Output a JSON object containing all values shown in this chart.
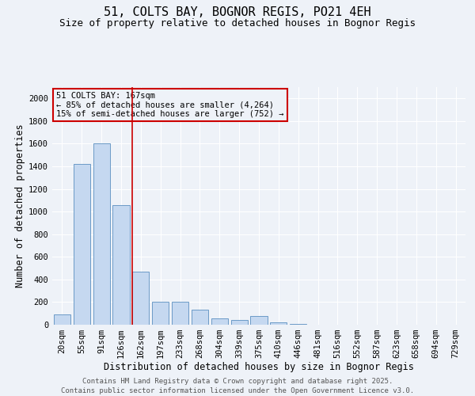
{
  "title": "51, COLTS BAY, BOGNOR REGIS, PO21 4EH",
  "subtitle": "Size of property relative to detached houses in Bognor Regis",
  "xlabel": "Distribution of detached houses by size in Bognor Regis",
  "ylabel": "Number of detached properties",
  "categories": [
    "20sqm",
    "55sqm",
    "91sqm",
    "126sqm",
    "162sqm",
    "197sqm",
    "233sqm",
    "268sqm",
    "304sqm",
    "339sqm",
    "375sqm",
    "410sqm",
    "446sqm",
    "481sqm",
    "516sqm",
    "552sqm",
    "587sqm",
    "623sqm",
    "658sqm",
    "694sqm",
    "729sqm"
  ],
  "values": [
    90,
    1420,
    1600,
    1060,
    470,
    205,
    205,
    130,
    55,
    40,
    80,
    20,
    5,
    2,
    1,
    1,
    0,
    0,
    0,
    0,
    0
  ],
  "bar_color": "#c5d8f0",
  "bar_edge_color": "#5a8fc0",
  "vline_x": 4.0,
  "vline_color": "#cc0000",
  "ylim": [
    0,
    2100
  ],
  "yticks": [
    0,
    200,
    400,
    600,
    800,
    1000,
    1200,
    1400,
    1600,
    1800,
    2000
  ],
  "annotation_title": "51 COLTS BAY: 167sqm",
  "annotation_line1": "← 85% of detached houses are smaller (4,264)",
  "annotation_line2": "15% of semi-detached houses are larger (752) →",
  "annotation_box_color": "#cc0000",
  "bg_color": "#eef2f8",
  "grid_color": "#ffffff",
  "footer_line1": "Contains HM Land Registry data © Crown copyright and database right 2025.",
  "footer_line2": "Contains public sector information licensed under the Open Government Licence v3.0.",
  "title_fontsize": 11,
  "subtitle_fontsize": 9,
  "axis_label_fontsize": 8.5,
  "tick_fontsize": 7.5,
  "annotation_fontsize": 7.5,
  "footer_fontsize": 6.5
}
